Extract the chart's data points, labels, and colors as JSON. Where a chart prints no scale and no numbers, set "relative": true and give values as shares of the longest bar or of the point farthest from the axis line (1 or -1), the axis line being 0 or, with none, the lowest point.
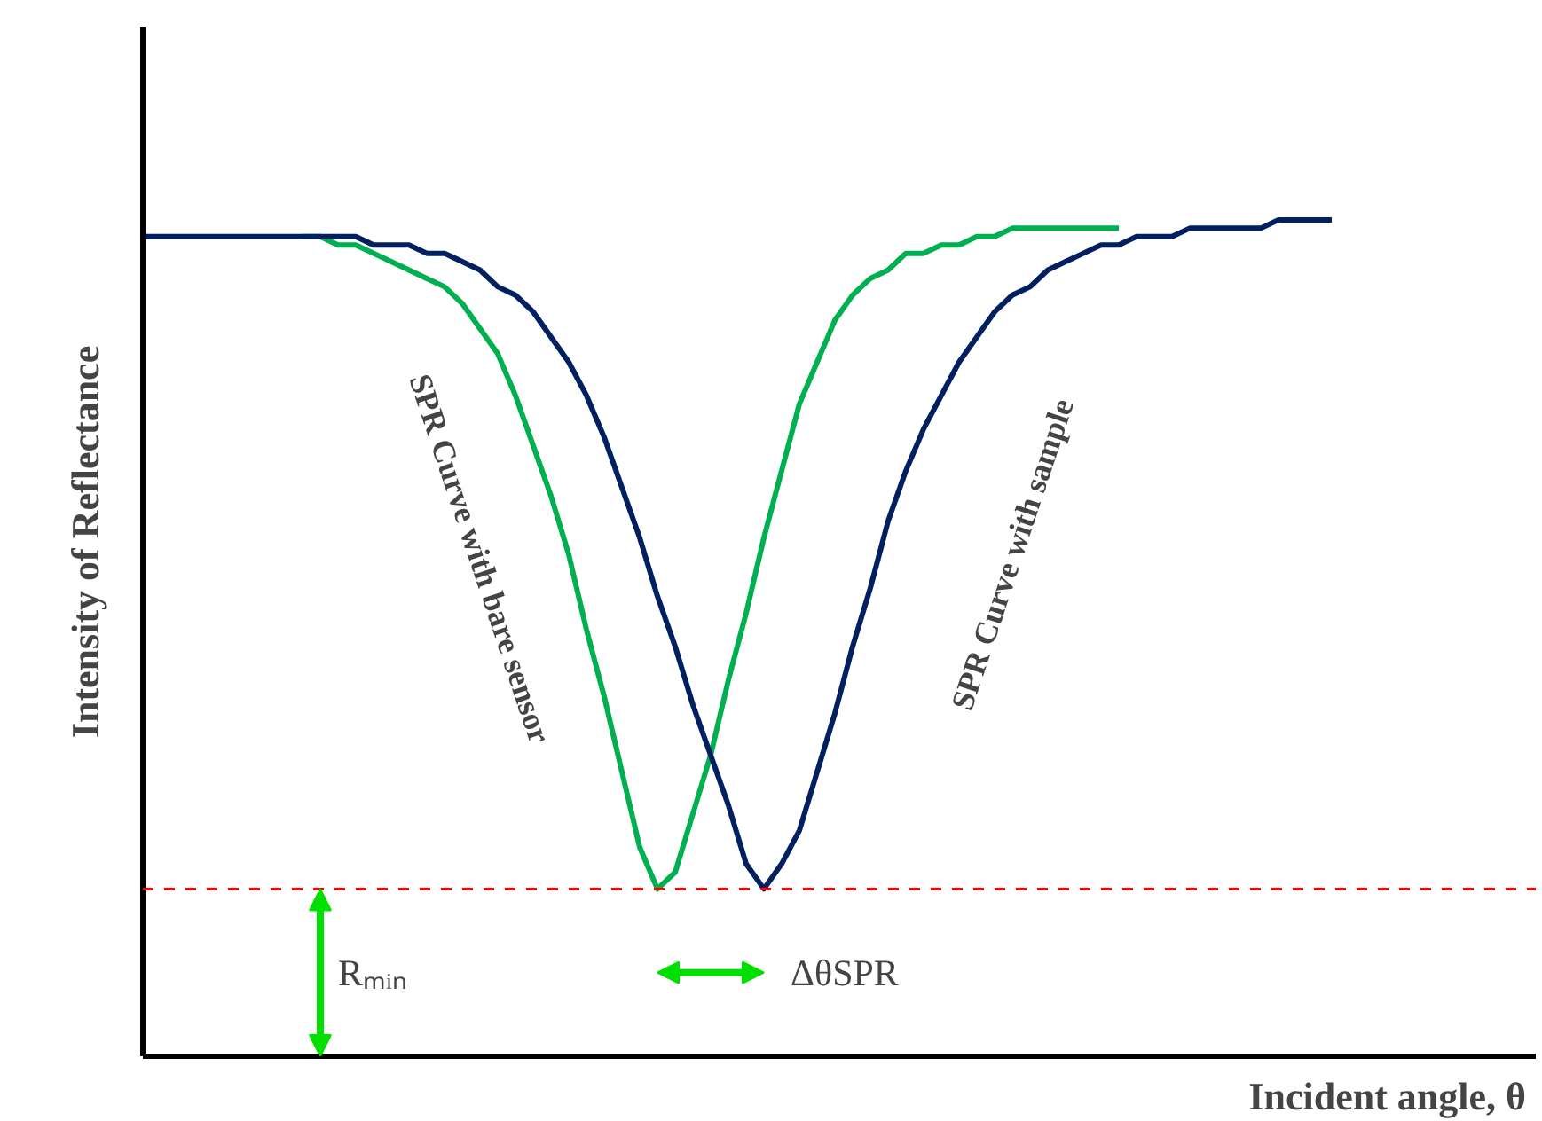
{
  "chart_data": {
    "type": "line",
    "relative": true,
    "xlabel": "Incident  angle, θ",
    "ylabel": "Intensity of Reflectance",
    "categories": [
      null,
      null,
      null,
      null,
      null,
      null,
      null,
      null,
      null,
      null,
      null,
      null,
      null,
      null,
      null,
      null,
      null,
      null,
      null,
      null,
      null,
      null,
      null,
      null,
      null,
      null,
      null,
      null,
      null,
      null,
      null,
      null,
      null,
      null,
      null,
      null,
      null,
      null,
      null,
      null,
      null,
      null,
      null,
      null,
      null,
      null,
      null,
      null,
      null,
      null,
      null,
      null,
      null,
      null,
      null,
      null,
      null,
      null,
      null,
      null,
      null,
      null,
      null,
      null,
      null,
      null,
      null,
      null
    ],
    "series": [
      {
        "name": "SPR Curve with bare sensor",
        "color": "#00b050",
        "values": [
          null,
          null,
          null,
          null,
          null,
          null,
          null,
          null,
          null,
          0.98,
          0.98,
          0.97,
          0.97,
          0.96,
          0.95,
          0.94,
          0.93,
          0.92,
          0.9,
          0.87,
          0.84,
          0.79,
          0.73,
          0.67,
          0.6,
          0.51,
          0.43,
          0.34,
          0.25,
          0.2,
          0.22,
          0.29,
          0.36,
          0.45,
          0.53,
          0.62,
          0.7,
          0.78,
          0.83,
          0.88,
          0.91,
          0.93,
          0.94,
          0.96,
          0.96,
          0.97,
          0.97,
          0.98,
          0.98,
          0.99,
          0.99,
          0.99,
          0.99,
          0.99,
          0.99,
          0.99,
          null,
          null,
          null,
          null,
          null,
          null,
          null,
          null,
          null,
          null,
          null,
          null
        ]
      },
      {
        "name": "SPR Curve with sample",
        "color": "#002060",
        "values": [
          0.98,
          0.98,
          0.98,
          0.98,
          0.98,
          0.98,
          0.98,
          0.98,
          0.98,
          0.98,
          0.98,
          0.98,
          0.98,
          0.97,
          0.97,
          0.97,
          0.96,
          0.96,
          0.95,
          0.94,
          0.92,
          0.91,
          0.89,
          0.86,
          0.83,
          0.79,
          0.74,
          0.68,
          0.62,
          0.55,
          0.49,
          0.42,
          0.36,
          0.3,
          0.23,
          0.2,
          0.23,
          0.27,
          0.34,
          0.41,
          0.49,
          0.56,
          0.64,
          0.7,
          0.75,
          0.79,
          0.83,
          0.86,
          0.89,
          0.91,
          0.92,
          0.94,
          0.95,
          0.96,
          0.97,
          0.97,
          0.98,
          0.98,
          0.98,
          0.99,
          0.99,
          0.99,
          0.99,
          0.99,
          1.0,
          1.0,
          1.0,
          1.0
        ]
      }
    ],
    "ref_lines": [
      {
        "axis": "y",
        "value": 0.2,
        "color": "#ff0000",
        "line_style": "dashed"
      }
    ],
    "annotations": [
      "Rₘᵢₙ",
      "ΔθSPR"
    ]
  }
}
